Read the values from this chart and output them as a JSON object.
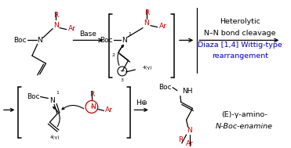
{
  "fig_width": 3.71,
  "fig_height": 1.89,
  "dpi": 100,
  "background_color": "#ffffff",
  "top_right_lines": [
    {
      "text": "Heterolytic",
      "color": "#000000",
      "fontsize": 6.8
    },
    {
      "text": "N–N bond cleavage",
      "color": "#000000",
      "fontsize": 6.8
    },
    {
      "text": "Diaza [1,4] Wittig-type",
      "color": "#0000cc",
      "fontsize": 6.8
    },
    {
      "text": "rearrangement",
      "color": "#0000cc",
      "fontsize": 6.8
    }
  ],
  "bottom_right_lines": [
    {
      "text": "(E)-γ-amino-",
      "color": "#000000",
      "fontsize": 6.8,
      "style": "normal"
    },
    {
      "text": "N-Boc-enamine",
      "color": "#000000",
      "fontsize": 6.8,
      "style": "italic"
    }
  ]
}
